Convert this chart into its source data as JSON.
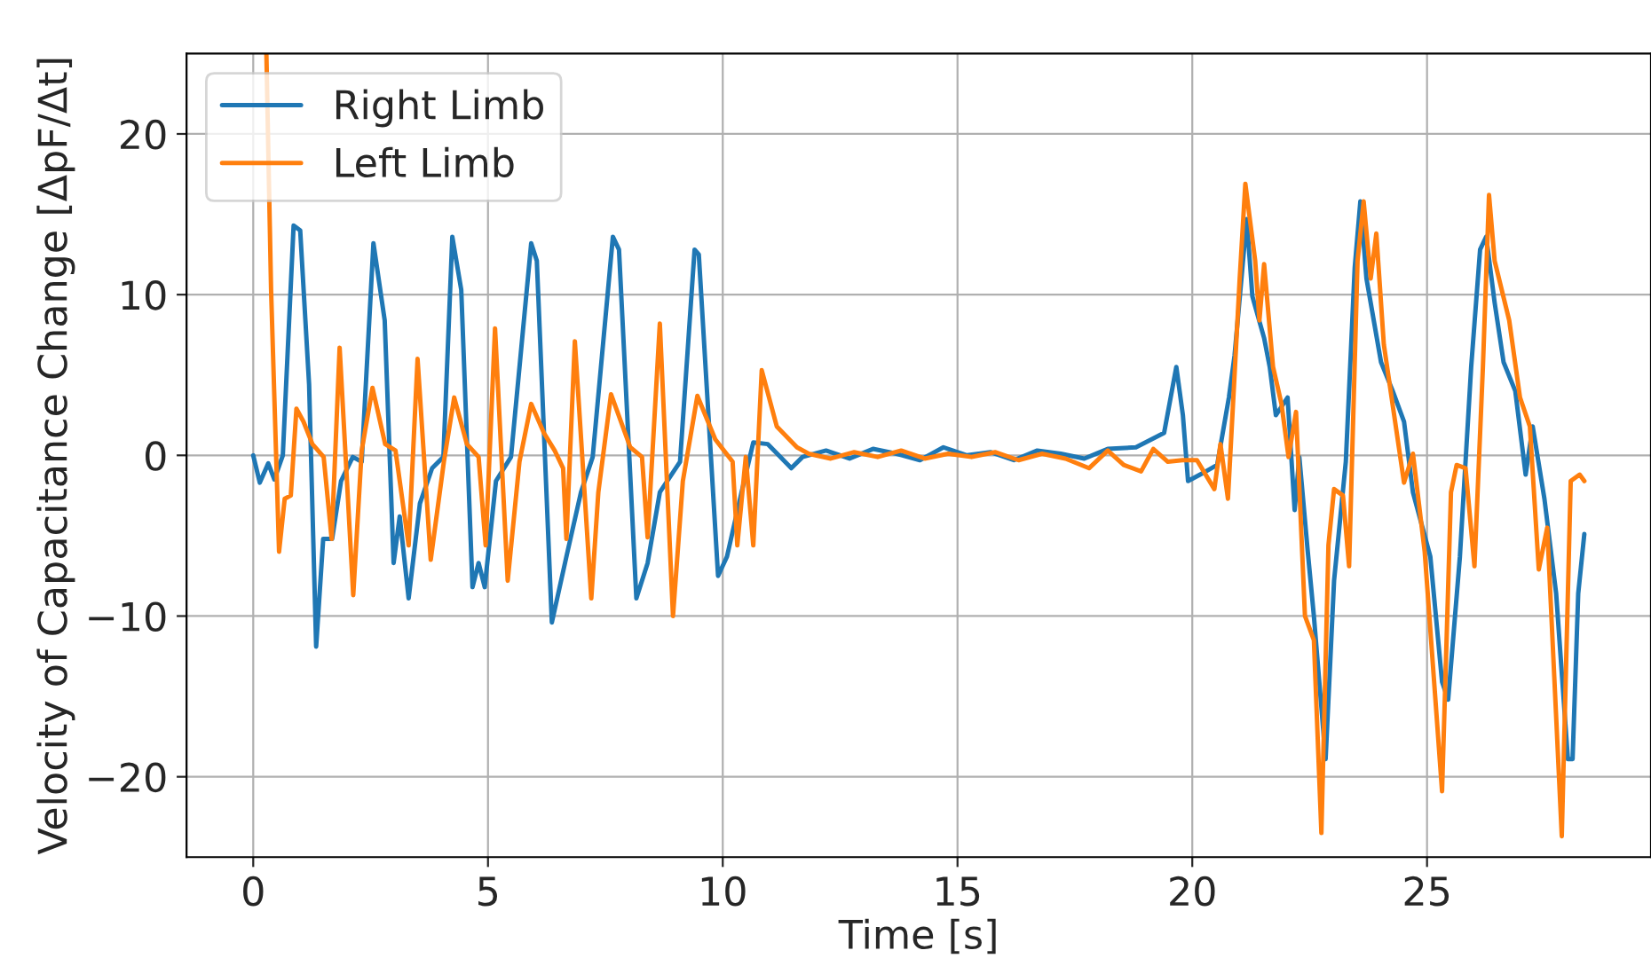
{
  "chart_data": {
    "type": "line",
    "xlabel": "Time [s]",
    "ylabel": "Velocity of Capacitance Change [ΔpF/Δt]",
    "xlim": [
      -1.42,
      29.77
    ],
    "ylim": [
      -25,
      25
    ],
    "xticks": [
      0,
      5,
      10,
      15,
      20,
      25
    ],
    "yticks": [
      {
        "value": -20,
        "label": "−20"
      },
      {
        "value": -10,
        "label": "−10"
      },
      0,
      10,
      20
    ],
    "grid": true,
    "legend": "top left",
    "line_style": "solid",
    "marker": "none",
    "series": [
      {
        "name": "Right Limb",
        "color": "#1f77b4",
        "x": [
          0,
          0.14,
          0.32,
          0.45,
          0.63,
          0.86,
          1.0,
          1.19,
          1.34,
          1.49,
          1.68,
          1.87,
          2.12,
          2.31,
          2.56,
          2.8,
          2.99,
          3.12,
          3.31,
          3.55,
          3.81,
          4.05,
          4.24,
          4.43,
          4.67,
          4.8,
          4.93,
          5.17,
          5.49,
          5.92,
          6.04,
          6.36,
          6.67,
          6.98,
          7.23,
          7.66,
          7.79,
          8.16,
          8.4,
          8.66,
          9.09,
          9.4,
          9.49,
          9.9,
          10.09,
          10.4,
          10.65,
          10.96,
          11.46,
          11.7,
          12.2,
          12.7,
          13.2,
          13.7,
          14.2,
          14.7,
          15.2,
          15.7,
          16.2,
          16.7,
          17.2,
          17.7,
          18.2,
          18.8,
          19.4,
          19.66,
          19.8,
          19.91,
          20.29,
          20.53,
          20.78,
          20.9,
          21.16,
          21.28,
          21.53,
          21.65,
          21.78,
          22.03,
          22.18,
          22.28,
          22.46,
          22.59,
          22.84,
          23.02,
          23.27,
          23.46,
          23.58,
          23.71,
          24.02,
          24.27,
          24.51,
          24.7,
          25.07,
          25.32,
          25.45,
          25.7,
          25.94,
          26.13,
          26.26,
          26.44,
          26.63,
          26.88,
          27.1,
          27.25,
          27.5,
          27.75,
          28.0,
          28.1,
          28.22,
          28.35
        ],
        "values": [
          0,
          -1.7,
          -0.5,
          -1.5,
          0,
          14.3,
          14.0,
          4.4,
          -11.9,
          -5.2,
          -5.2,
          -1.6,
          -0.1,
          -0.4,
          13.2,
          8.4,
          -6.7,
          -3.8,
          -8.9,
          -3.0,
          -0.8,
          -0.1,
          13.6,
          10.3,
          -8.2,
          -6.7,
          -8.2,
          -1.6,
          -0.1,
          13.2,
          12.1,
          -10.4,
          -6.3,
          -2.3,
          -0.1,
          13.6,
          12.8,
          -8.9,
          -6.7,
          -2.3,
          -0.4,
          12.8,
          12.5,
          -7.5,
          -6.3,
          -2.3,
          0.8,
          0.7,
          -0.8,
          -0.1,
          0.3,
          -0.2,
          0.4,
          0.1,
          -0.3,
          0.5,
          0.0,
          0.2,
          -0.3,
          0.3,
          0.1,
          -0.2,
          0.4,
          0.5,
          1.4,
          5.5,
          2.5,
          -1.6,
          -1.0,
          -0.6,
          3.6,
          6.2,
          14.7,
          9.9,
          7.3,
          5.5,
          2.5,
          3.6,
          -3.4,
          -0.1,
          -6.0,
          -10.0,
          -18.9,
          -7.8,
          -0.4,
          11.7,
          15.8,
          11.0,
          5.8,
          4.0,
          2.1,
          -2.3,
          -6.3,
          -14.1,
          -15.2,
          -6.3,
          5.5,
          12.8,
          13.6,
          9.5,
          5.8,
          4.0,
          -1.2,
          1.8,
          -2.7,
          -8.6,
          -18.9,
          -18.9,
          -8.6,
          -4.9
        ]
      },
      {
        "name": "Left Limb",
        "color": "#ff7f0e",
        "x": [
          0.28,
          0.38,
          0.55,
          0.67,
          0.8,
          0.92,
          1.07,
          1.26,
          1.5,
          1.67,
          1.84,
          2.13,
          2.31,
          2.54,
          2.81,
          3.03,
          3.31,
          3.5,
          3.78,
          4.06,
          4.28,
          4.55,
          4.8,
          4.95,
          5.15,
          5.42,
          5.67,
          5.92,
          6.19,
          6.42,
          6.6,
          6.67,
          6.85,
          7.2,
          7.35,
          7.62,
          8.03,
          8.28,
          8.4,
          8.66,
          8.94,
          9.15,
          9.46,
          9.84,
          10.21,
          10.31,
          10.49,
          10.65,
          10.83,
          11.15,
          11.58,
          11.83,
          12.3,
          12.8,
          13.3,
          13.8,
          14.3,
          14.8,
          15.3,
          15.8,
          16.3,
          16.8,
          17.3,
          17.8,
          18.2,
          18.54,
          18.91,
          19.17,
          19.48,
          19.79,
          20.1,
          20.47,
          20.6,
          20.76,
          21.01,
          21.13,
          21.34,
          21.43,
          21.53,
          21.72,
          21.9,
          22.05,
          22.21,
          22.4,
          22.59,
          22.75,
          22.9,
          23.02,
          23.21,
          23.34,
          23.52,
          23.65,
          23.8,
          23.92,
          24.08,
          24.51,
          24.7,
          24.95,
          25.32,
          25.51,
          25.63,
          25.82,
          26.01,
          26.19,
          26.32,
          26.44,
          26.75,
          26.98,
          27.19,
          27.38,
          27.56,
          27.87,
          28.06,
          28.25,
          28.35
        ],
        "values": [
          25,
          10.3,
          -6.0,
          -2.7,
          -2.5,
          2.9,
          2.1,
          0.7,
          -0.1,
          -5.2,
          6.7,
          -8.7,
          0.3,
          4.2,
          0.7,
          0.3,
          -5.6,
          6.0,
          -6.5,
          -0.4,
          3.6,
          0.7,
          -0.1,
          -5.6,
          7.9,
          -7.8,
          -0.4,
          3.2,
          1.4,
          0.3,
          -0.8,
          -5.2,
          7.1,
          -8.9,
          -2.3,
          3.8,
          0.5,
          -0.1,
          -5.1,
          8.2,
          -10.0,
          -1.6,
          3.7,
          1.0,
          -0.4,
          -5.6,
          -0.1,
          -5.6,
          5.3,
          1.8,
          0.5,
          0.1,
          -0.2,
          0.2,
          -0.1,
          0.3,
          -0.2,
          0.1,
          -0.1,
          0.2,
          -0.3,
          0.1,
          -0.2,
          -0.8,
          0.3,
          -0.6,
          -1.0,
          0.4,
          -0.4,
          -0.3,
          -0.3,
          -2.1,
          0.7,
          -2.7,
          11.0,
          16.9,
          12.1,
          8.4,
          11.9,
          5.5,
          3.2,
          -0.1,
          2.7,
          -10.0,
          -11.5,
          -23.5,
          -5.6,
          -2.1,
          -2.5,
          -6.9,
          12.1,
          15.8,
          11.0,
          13.8,
          6.9,
          -1.7,
          0.1,
          -6.0,
          -20.9,
          -2.3,
          -0.6,
          -0.8,
          -6.9,
          5.5,
          16.2,
          12.1,
          8.4,
          3.6,
          1.8,
          -7.1,
          -4.5,
          -23.7,
          -1.6,
          -1.2,
          -1.6
        ]
      }
    ]
  }
}
